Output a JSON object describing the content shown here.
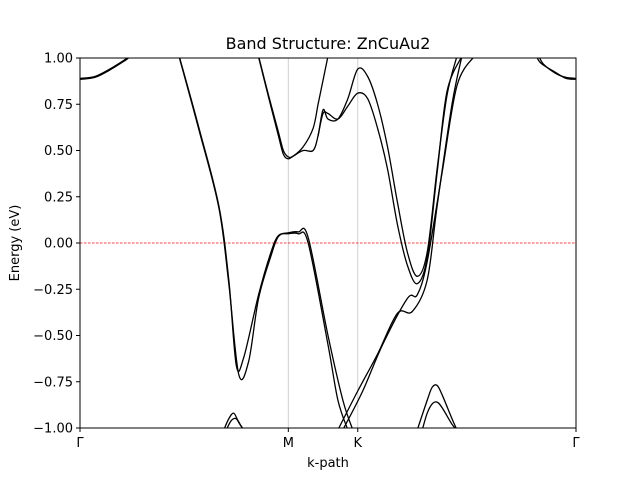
{
  "chart_data": {
    "type": "line",
    "title": "Band Structure: ZnCuAu2",
    "xlabel": "k-path",
    "ylabel": "Energy (eV)",
    "ylim": [
      -1.0,
      1.0
    ],
    "xlim": [
      0,
      1
    ],
    "y_ticks": [
      "1.00",
      "0.75",
      "0.50",
      "0.25",
      "0.00",
      "−0.25",
      "−0.50",
      "−0.75",
      "−1.00"
    ],
    "y_tick_values": [
      1.0,
      0.75,
      0.5,
      0.25,
      0.0,
      -0.25,
      -0.5,
      -0.75,
      -1.0
    ],
    "x_ticks": [
      {
        "label": "Γ",
        "x": 0.0
      },
      {
        "label": "M",
        "x": 0.42
      },
      {
        "label": "K",
        "x": 0.56
      },
      {
        "label": "Γ",
        "x": 1.0
      }
    ],
    "fermi_level": 0.0,
    "fermi_color": "#ff0000",
    "band_color": "#000000",
    "series": [
      {
        "points": [
          [
            0.0,
            0.89
          ],
          [
            0.03,
            0.9
          ],
          [
            0.06,
            0.94
          ],
          [
            0.09,
            0.99
          ],
          [
            0.1,
            1.01
          ]
        ]
      },
      {
        "points": [
          [
            0.0,
            0.885
          ],
          [
            0.03,
            0.895
          ],
          [
            0.06,
            0.935
          ],
          [
            0.09,
            0.985
          ],
          [
            0.1,
            1.005
          ]
        ]
      },
      {
        "points": [
          [
            0.2,
            1.01
          ],
          [
            0.24,
            0.62
          ],
          [
            0.28,
            0.2
          ],
          [
            0.3,
            -0.2
          ],
          [
            0.315,
            -0.66
          ],
          [
            0.33,
            -0.62
          ],
          [
            0.36,
            -0.28
          ],
          [
            0.385,
            -0.05
          ],
          [
            0.4,
            0.04
          ],
          [
            0.42,
            0.05
          ],
          [
            0.44,
            0.05
          ],
          [
            0.46,
            0.0
          ],
          [
            0.5,
            -0.55
          ],
          [
            0.52,
            -0.85
          ],
          [
            0.54,
            -1.01
          ]
        ]
      },
      {
        "points": [
          [
            0.2,
            1.005
          ],
          [
            0.24,
            0.61
          ],
          [
            0.28,
            0.19
          ],
          [
            0.3,
            -0.22
          ],
          [
            0.32,
            -0.71
          ],
          [
            0.34,
            -0.64
          ],
          [
            0.36,
            -0.3
          ],
          [
            0.385,
            -0.07
          ],
          [
            0.4,
            0.035
          ],
          [
            0.42,
            0.055
          ],
          [
            0.44,
            0.06
          ],
          [
            0.46,
            0.03
          ],
          [
            0.5,
            -0.5
          ],
          [
            0.53,
            -0.85
          ],
          [
            0.55,
            -1.01
          ]
        ]
      },
      {
        "points": [
          [
            0.36,
            1.01
          ],
          [
            0.38,
            0.8
          ],
          [
            0.4,
            0.6
          ],
          [
            0.41,
            0.5
          ],
          [
            0.42,
            0.465
          ],
          [
            0.43,
            0.47
          ],
          [
            0.45,
            0.52
          ],
          [
            0.47,
            0.62
          ],
          [
            0.48,
            0.75
          ],
          [
            0.49,
            0.88
          ],
          [
            0.5,
            1.01
          ]
        ]
      },
      {
        "points": [
          [
            0.36,
            1.005
          ],
          [
            0.38,
            0.79
          ],
          [
            0.4,
            0.58
          ],
          [
            0.41,
            0.48
          ],
          [
            0.42,
            0.455
          ],
          [
            0.43,
            0.47
          ],
          [
            0.45,
            0.5
          ],
          [
            0.47,
            0.5
          ],
          [
            0.48,
            0.58
          ],
          [
            0.49,
            0.72
          ],
          [
            0.5,
            0.67
          ],
          [
            0.52,
            0.67
          ],
          [
            0.54,
            0.78
          ],
          [
            0.56,
            0.94
          ],
          [
            0.58,
            0.9
          ],
          [
            0.6,
            0.75
          ],
          [
            0.62,
            0.52
          ],
          [
            0.64,
            0.22
          ],
          [
            0.66,
            -0.05
          ],
          [
            0.68,
            -0.18
          ],
          [
            0.7,
            -0.05
          ],
          [
            0.72,
            0.4
          ],
          [
            0.74,
            0.8
          ],
          [
            0.76,
            1.01
          ]
        ]
      },
      {
        "points": [
          [
            0.48,
            0.58
          ],
          [
            0.49,
            0.7
          ],
          [
            0.5,
            0.7
          ],
          [
            0.52,
            0.67
          ],
          [
            0.54,
            0.74
          ],
          [
            0.56,
            0.81
          ],
          [
            0.58,
            0.78
          ],
          [
            0.6,
            0.62
          ],
          [
            0.62,
            0.4
          ],
          [
            0.64,
            0.1
          ],
          [
            0.66,
            -0.12
          ],
          [
            0.68,
            -0.22
          ],
          [
            0.7,
            -0.08
          ],
          [
            0.72,
            0.38
          ],
          [
            0.74,
            0.82
          ],
          [
            0.77,
            1.01
          ]
        ]
      },
      {
        "points": [
          [
            0.52,
            -1.01
          ],
          [
            0.56,
            -0.8
          ],
          [
            0.6,
            -0.6
          ],
          [
            0.64,
            -0.38
          ],
          [
            0.67,
            -0.37
          ],
          [
            0.7,
            -0.2
          ],
          [
            0.72,
            0.2
          ],
          [
            0.75,
            0.75
          ],
          [
            0.77,
            1.01
          ]
        ]
      },
      {
        "points": [
          [
            0.53,
            -1.01
          ],
          [
            0.57,
            -0.8
          ],
          [
            0.61,
            -0.55
          ],
          [
            0.66,
            -0.3
          ],
          [
            0.68,
            -0.28
          ],
          [
            0.7,
            -0.1
          ],
          [
            0.73,
            0.38
          ],
          [
            0.76,
            0.85
          ],
          [
            0.795,
            1.01
          ]
        ]
      },
      {
        "points": [
          [
            0.29,
            -1.01
          ],
          [
            0.3,
            -0.95
          ],
          [
            0.31,
            -0.92
          ],
          [
            0.32,
            -0.97
          ],
          [
            0.33,
            -1.01
          ]
        ]
      },
      {
        "points": [
          [
            0.295,
            -1.01
          ],
          [
            0.305,
            -0.96
          ],
          [
            0.315,
            -0.95
          ],
          [
            0.325,
            -0.99
          ],
          [
            0.33,
            -1.01
          ]
        ]
      },
      {
        "points": [
          [
            0.68,
            -1.01
          ],
          [
            0.7,
            -0.85
          ],
          [
            0.71,
            -0.78
          ],
          [
            0.72,
            -0.77
          ],
          [
            0.73,
            -0.82
          ],
          [
            0.75,
            -0.95
          ],
          [
            0.76,
            -1.01
          ]
        ]
      },
      {
        "points": [
          [
            0.69,
            -1.01
          ],
          [
            0.7,
            -0.92
          ],
          [
            0.71,
            -0.87
          ],
          [
            0.72,
            -0.86
          ],
          [
            0.73,
            -0.89
          ],
          [
            0.75,
            -0.98
          ],
          [
            0.76,
            -1.01
          ]
        ]
      },
      {
        "points": [
          [
            0.92,
            1.01
          ],
          [
            0.93,
            0.97
          ],
          [
            0.96,
            0.92
          ],
          [
            0.98,
            0.89
          ],
          [
            1.0,
            0.885
          ]
        ]
      },
      {
        "points": [
          [
            0.925,
            1.01
          ],
          [
            0.935,
            0.965
          ],
          [
            0.96,
            0.915
          ],
          [
            0.98,
            0.895
          ],
          [
            1.0,
            0.89
          ]
        ]
      }
    ]
  }
}
